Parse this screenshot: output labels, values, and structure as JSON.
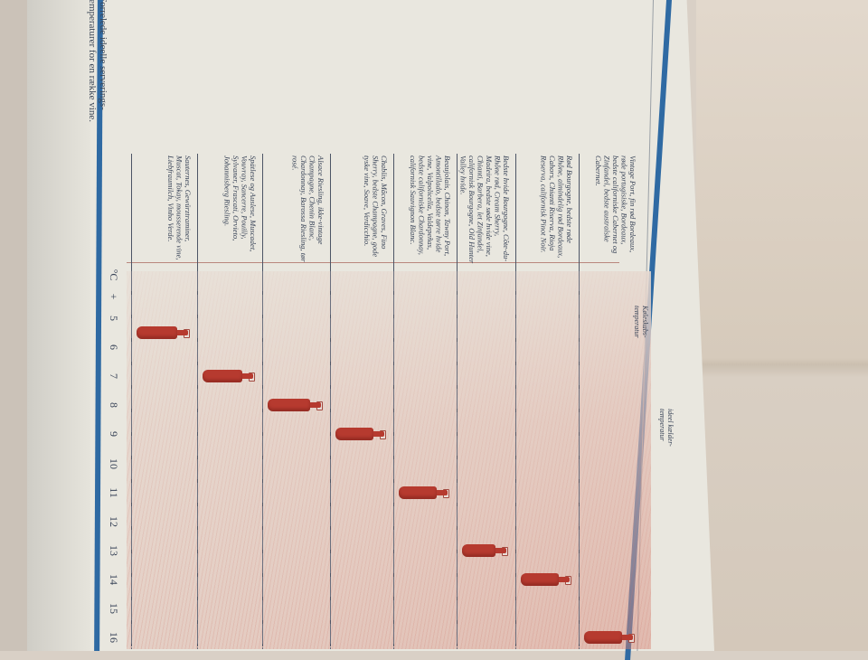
{
  "caption": "Forrelede ideelle serverings-temperaturer for en række vine.",
  "headers": {
    "fridge": "Køleskabs-temperatur",
    "cellar": "ideel kælder-temperatur"
  },
  "scale": {
    "unit": "°C",
    "ticks": [
      "+",
      "5",
      "6",
      "7",
      "8",
      "9",
      "10",
      "11",
      "12",
      "13",
      "14",
      "15",
      "16"
    ]
  },
  "colors": {
    "bottle": "#b63a2f",
    "accent_blue": "#2f6aa3"
  },
  "chart_data": {
    "type": "table",
    "xlabel": "°C",
    "rows": [
      {
        "wines": "Vintage Port, fin rød Bordeaux, røde portugisiske, Bordeaux, bedste californiske Cabernet og Zinfandel, bedste australske Cabernet.",
        "temp": 16
      },
      {
        "wines": "Rød Bourgogne, bedste røde Rhône, almindelig rød Bordeaux, Cahors, Chianti Riserva, Rioja Reserva, californisk Pinot Noir.",
        "temp": 14
      },
      {
        "wines": "Bedste hvide Bourgogne, Côte-du-Rhône rød, Cream Sherry, Madeira, bedste søde hvide vine, Chianti, Barbera, let Zinfandel, californisk Bourgogne, Old Hunter Valley hvide.",
        "temp": 13
      },
      {
        "wines": "Beaujolais, Chinon, Tawny Port, Amontillado, bedste tørre hvide vine, Valpolicella, Valdepeñas, bedste californiske Chardonnay, californisk Sauvignon Blanc.",
        "temp": 11
      },
      {
        "wines": "Chablis, Mâcon, Graves, Fino Sherry, bedste Champagne, gode tyske vine, Soave, Verdicchio.",
        "temp": 9
      },
      {
        "wines": "Alsace Riesling, ikke-vintage Champagne, Chenin Blanc, Chardonnay, Barossa Riesling, tør rosé.",
        "temp": 8
      },
      {
        "wines": "Spätlese og Auslese, Muscadet, Vouvray, Sancerre, Pouilly, Sylvaner, Frascati, Orvieto, Johannisberg Riesling.",
        "temp": 7
      },
      {
        "wines": "Sauternes, Gewürztraminer, Muscat, Tokay, mousserende vine, Liebfraumilch, Vinho Verde.",
        "temp": 5.5
      }
    ]
  }
}
